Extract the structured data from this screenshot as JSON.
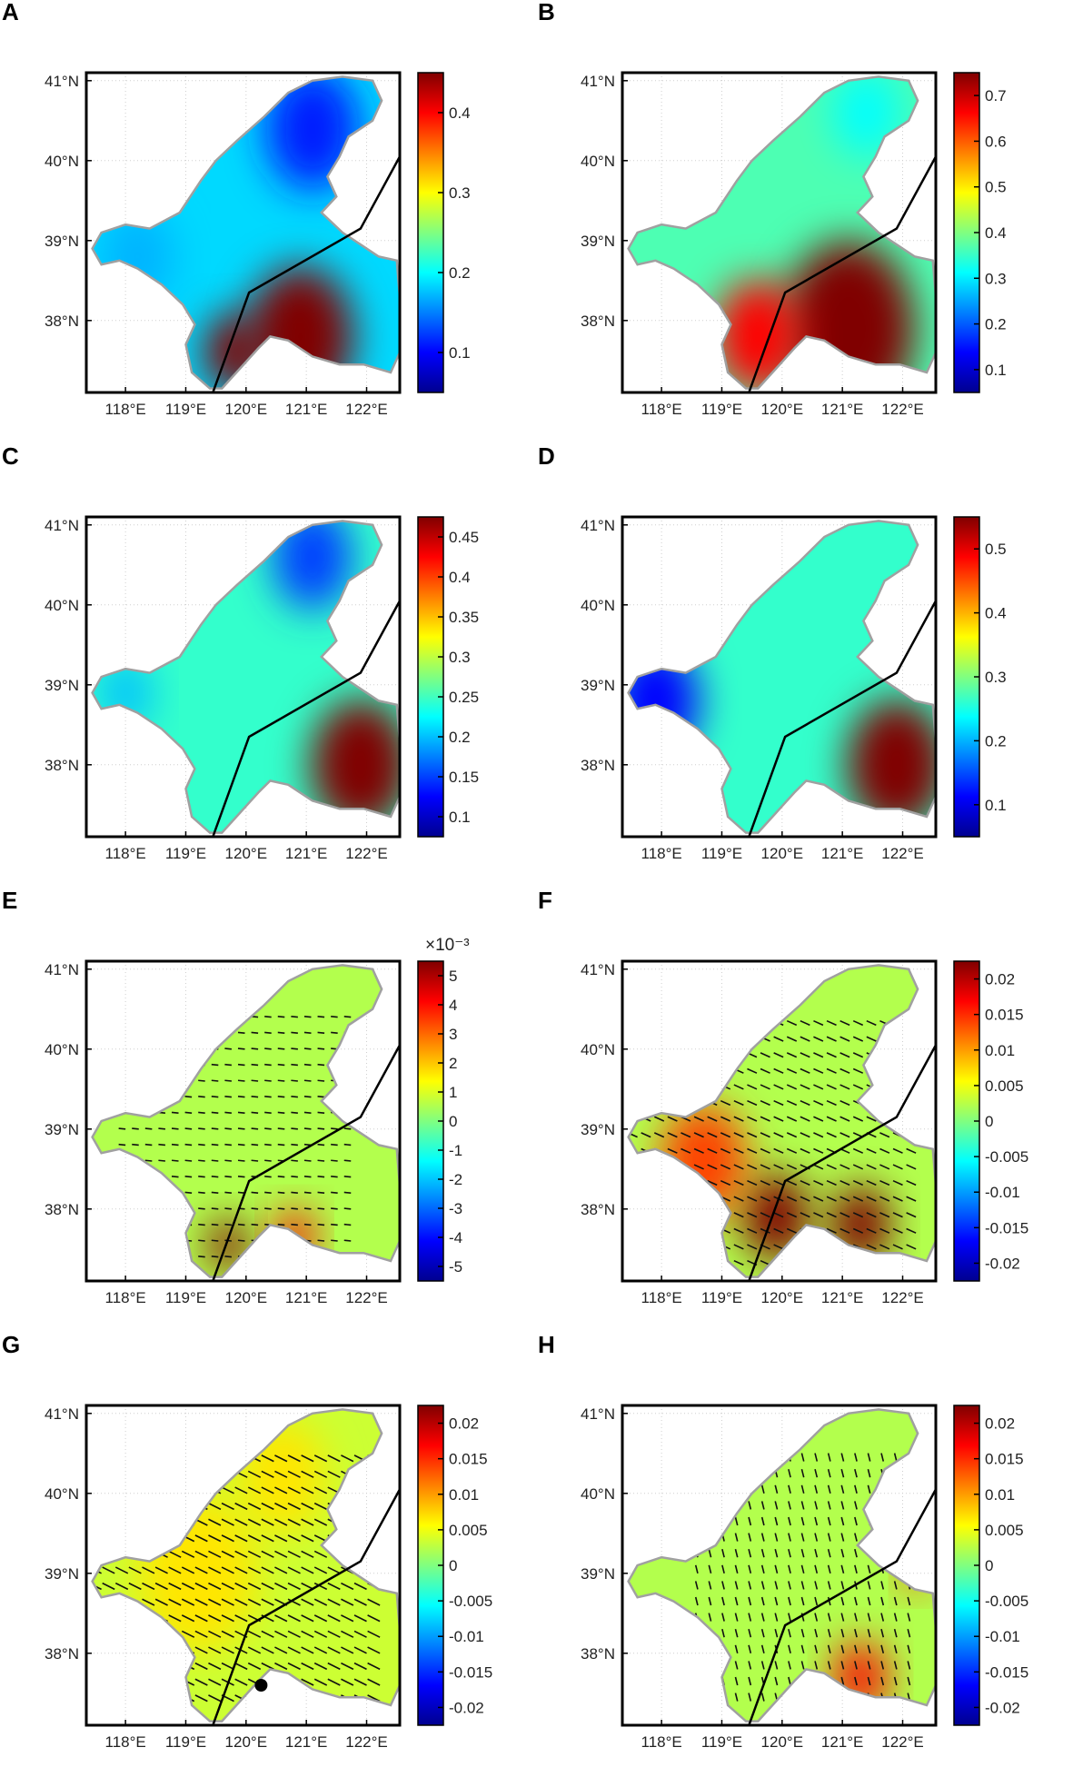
{
  "panels": [
    {
      "label": "A",
      "map": "A",
      "ticks": [
        "0.1",
        "0.2",
        "0.3",
        "0.4"
      ],
      "exp": ""
    },
    {
      "label": "B",
      "map": "B",
      "ticks": [
        "0.1",
        "0.2",
        "0.3",
        "0.4",
        "0.5",
        "0.6",
        "0.7"
      ],
      "exp": ""
    },
    {
      "label": "C",
      "map": "C",
      "ticks": [
        "0.1",
        "0.15",
        "0.2",
        "0.25",
        "0.3",
        "0.35",
        "0.4",
        "0.45"
      ],
      "exp": ""
    },
    {
      "label": "D",
      "map": "D",
      "ticks": [
        "0.1",
        "0.2",
        "0.3",
        "0.4",
        "0.5"
      ],
      "exp": ""
    },
    {
      "label": "E",
      "map": "E",
      "ticks": [
        "-5",
        "-4",
        "-3",
        "-2",
        "-1",
        "0",
        "1",
        "2",
        "3",
        "4",
        "5"
      ],
      "exp": "×10⁻³"
    },
    {
      "label": "F",
      "map": "F",
      "ticks": [
        "-0.02",
        "-0.015",
        "-0.01",
        "-0.005",
        "0",
        "0.005",
        "0.01",
        "0.015",
        "0.02"
      ],
      "exp": ""
    },
    {
      "label": "G",
      "map": "G",
      "ticks": [
        "-0.02",
        "-0.015",
        "-0.01",
        "-0.005",
        "0",
        "0.005",
        "0.01",
        "0.015",
        "0.02"
      ],
      "exp": ""
    },
    {
      "label": "H",
      "map": "H",
      "ticks": [
        "-0.02",
        "-0.015",
        "-0.01",
        "-0.005",
        "0",
        "0.005",
        "0.01",
        "0.015",
        "0.02"
      ],
      "exp": ""
    }
  ],
  "lat_labels": [
    "41°N",
    "40°N",
    "39°N",
    "38°N"
  ],
  "lon_labels": [
    "118°E",
    "119°E",
    "120°E",
    "121°E",
    "122°E"
  ],
  "colormap": [
    "#00008f",
    "#0000ff",
    "#0080ff",
    "#00ffff",
    "#80ff80",
    "#ffff00",
    "#ff8000",
    "#ff0000",
    "#800000"
  ],
  "land_color": "#ffffff",
  "coast_color": "#a0a0a0"
}
